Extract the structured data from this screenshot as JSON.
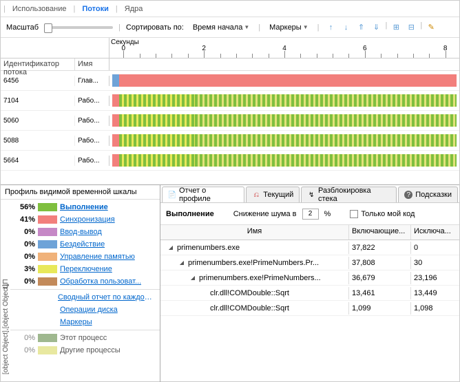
{
  "tabs": {
    "usage": "Использование",
    "threads": "Потоки",
    "cores": "Ядра"
  },
  "toolbar": {
    "scale": "Масштаб",
    "sortby": "Сортировать по:",
    "sortfield": "Время начала",
    "markers": "Маркеры"
  },
  "ruler": {
    "seconds": "Секунды",
    "ticks": [
      "0",
      "2",
      "4",
      "6",
      "8"
    ]
  },
  "headers": {
    "id": "Идентификатор потока",
    "name": "Имя"
  },
  "threads": [
    {
      "id": "6456",
      "name": "Глав..."
    },
    {
      "id": "7104",
      "name": "Рабо..."
    },
    {
      "id": "5060",
      "name": "Рабо..."
    },
    {
      "id": "5088",
      "name": "Рабо..."
    },
    {
      "id": "5664",
      "name": "Рабо..."
    }
  ],
  "colors": {
    "exec": "#7fbf3f",
    "exec_alt": "#e2e27a",
    "sync": "#f27f7c",
    "io": "#c688c6",
    "sleep": "#6ea3d8",
    "mem": "#f0b27a",
    "preempt": "#e8e85a",
    "ui": "#c38a5a",
    "thisproc": "#9fb88f",
    "otherproc": "#e8e8a0"
  },
  "profile": {
    "title": "Профиль видимой временной шкалы",
    "cpu": "ЦП",
    "gpu": [
      {
        "pct": "0%",
        "color": "#9fb88f",
        "name": "Этот процесс"
      },
      {
        "pct": "0%",
        "color": "#e8e8a0",
        "name": "Другие процессы"
      }
    ],
    "rows": [
      {
        "pct": "56%",
        "color": "#7fbf3f",
        "name": "Выполнение",
        "bold": true
      },
      {
        "pct": "41%",
        "color": "#f27f7c",
        "name": "Синхронизация"
      },
      {
        "pct": "0%",
        "color": "#c688c6",
        "name": "Ввод-вывод"
      },
      {
        "pct": "0%",
        "color": "#6ea3d8",
        "name": "Бездействие"
      },
      {
        "pct": "0%",
        "color": "#f0b27a",
        "name": "Управление памятью"
      },
      {
        "pct": "3%",
        "color": "#e8e85a",
        "name": "Переключение"
      },
      {
        "pct": "0%",
        "color": "#c38a5a",
        "name": "Обработка пользоват..."
      }
    ],
    "links": [
      "Сводный отчет по каждому ...",
      "Операции диска",
      "Маркеры"
    ]
  },
  "rtabs": {
    "report": "Отчет о профиле",
    "current": "Текущий",
    "unblock": "Разблокировка стека",
    "hints": "Подсказки"
  },
  "filter": {
    "heading": "Выполнение",
    "noise_label": "Снижение шума в",
    "noise_val": "2",
    "pct": "%",
    "mycode": "Только мой код"
  },
  "grid": {
    "cols": {
      "name": "Имя",
      "incl": "Включающие...",
      "excl": "Исключа..."
    },
    "rows": [
      {
        "indent": 0,
        "arrow": true,
        "name": "primenumbers.exe",
        "incl": "37,822",
        "excl": "0"
      },
      {
        "indent": 1,
        "arrow": true,
        "name": "primenumbers.exe!PrimeNumbers.Pr...",
        "incl": "37,808",
        "excl": "30"
      },
      {
        "indent": 2,
        "arrow": true,
        "name": "primenumbers.exe!PrimeNumbers...",
        "incl": "36,679",
        "excl": "23,196"
      },
      {
        "indent": 3,
        "arrow": false,
        "name": "clr.dll!COMDouble::Sqrt",
        "incl": "13,461",
        "excl": "13,449"
      },
      {
        "indent": 3,
        "arrow": false,
        "name": "clr.dll!COMDouble::Sqrt",
        "incl": "1,099",
        "excl": "1,098"
      }
    ]
  }
}
